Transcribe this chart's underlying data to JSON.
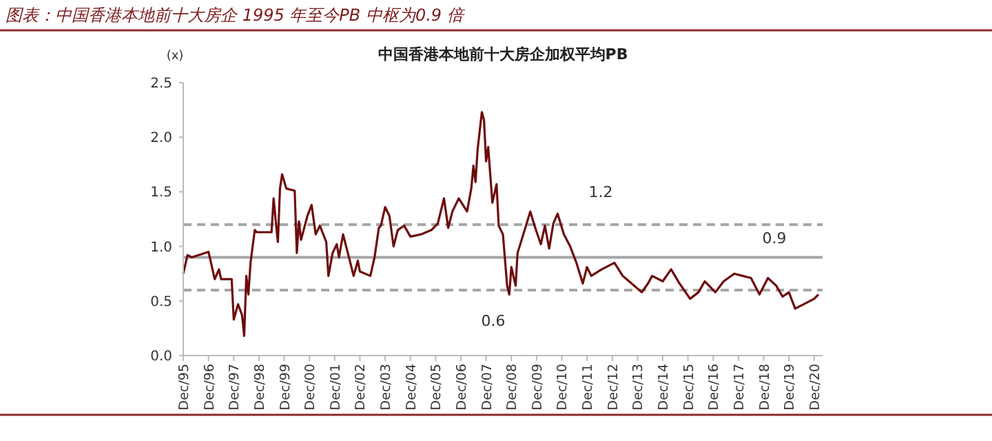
{
  "chart_data": {
    "type": "line",
    "title": "图表：中国香港本地前十大房企 1995 年至今PB 中枢为0.9 倍",
    "subtitle": "中国香港本地前十大房企加权平均PB",
    "ylabel": "(x)",
    "x": [
      "1995-12",
      "1996-02",
      "1996-04",
      "1996-12",
      "1997-03",
      "1997-05",
      "1997-06",
      "1997-11",
      "1997-12",
      "1998-02",
      "1998-04",
      "1998-05",
      "1998-06",
      "1998-07",
      "1998-08",
      "1998-10",
      "1998-11",
      "1999-06",
      "1999-07",
      "1999-08",
      "1999-09",
      "1999-10",
      "1999-11",
      "2000-01",
      "2000-05",
      "2000-06",
      "2000-07",
      "2000-08",
      "2000-11",
      "2001-01",
      "2001-03",
      "2001-05",
      "2001-08",
      "2001-09",
      "2001-11",
      "2002-01",
      "2002-02",
      "2002-04",
      "2002-06",
      "2002-09",
      "2002-11",
      "2002-12",
      "2003-05",
      "2003-07",
      "2003-09",
      "2003-10",
      "2003-12",
      "2004-02",
      "2004-04",
      "2004-06",
      "2004-09",
      "2004-12",
      "2005-05",
      "2005-10",
      "2006-01",
      "2006-04",
      "2006-06",
      "2006-08",
      "2006-11",
      "2007-03",
      "2007-05",
      "2007-06",
      "2007-07",
      "2007-08",
      "2007-10",
      "2007-11",
      "2007-12",
      "2008-01",
      "2008-03",
      "2008-05",
      "2008-06",
      "2008-08",
      "2008-10",
      "2008-11",
      "2008-12",
      "2009-02",
      "2009-03",
      "2009-07",
      "2009-09",
      "2009-11",
      "2010-02",
      "2010-04",
      "2010-06",
      "2010-08",
      "2010-10",
      "2011-01",
      "2011-04",
      "2011-07",
      "2011-10",
      "2011-12",
      "2012-02",
      "2012-07",
      "2013-01",
      "2013-05",
      "2013-08",
      "2014-02",
      "2014-05",
      "2014-07",
      "2014-12",
      "2015-04",
      "2015-08",
      "2016-01",
      "2016-05",
      "2016-08",
      "2017-01",
      "2017-05",
      "2017-10",
      "2018-02",
      "2018-06",
      "2018-10",
      "2019-02",
      "2019-06",
      "2019-09",
      "2019-12",
      "2020-03",
      "2020-07",
      "2020-12",
      "2021-02"
    ],
    "series": [
      {
        "color": "#6e0c0c",
        "values": [
          0.75,
          0.92,
          0.9,
          0.95,
          0.7,
          0.79,
          0.7,
          0.7,
          0.33,
          0.47,
          0.37,
          0.18,
          0.73,
          0.56,
          0.85,
          1.15,
          1.13,
          1.13,
          1.44,
          1.23,
          1.04,
          1.53,
          1.66,
          1.53,
          1.51,
          0.94,
          1.23,
          1.06,
          1.28,
          1.38,
          1.11,
          1.19,
          1.04,
          0.73,
          0.94,
          1.02,
          0.9,
          1.11,
          0.96,
          0.73,
          0.87,
          0.77,
          0.73,
          0.9,
          1.17,
          1.19,
          1.36,
          1.28,
          1.0,
          1.15,
          1.19,
          1.09,
          1.11,
          1.15,
          1.21,
          1.44,
          1.17,
          1.32,
          1.44,
          1.32,
          1.53,
          1.74,
          1.59,
          1.89,
          2.23,
          2.16,
          1.78,
          1.91,
          1.4,
          1.57,
          1.19,
          1.11,
          0.64,
          0.56,
          0.81,
          0.64,
          0.94,
          1.19,
          1.32,
          1.19,
          1.02,
          1.19,
          0.98,
          1.21,
          1.3,
          1.11,
          1.0,
          0.85,
          0.66,
          0.81,
          0.73,
          0.79,
          0.85,
          0.73,
          0.68,
          0.58,
          0.66,
          0.73,
          0.68,
          0.79,
          0.66,
          0.52,
          0.58,
          0.68,
          0.58,
          0.68,
          0.75,
          0.73,
          0.71,
          0.56,
          0.71,
          0.64,
          0.54,
          0.58,
          0.43,
          0.47,
          0.52,
          0.56
        ]
      }
    ],
    "xlim": [
      "1995-12",
      "2021-04"
    ],
    "xticks": [
      {
        "value": "1995-12",
        "label": "Dec/95"
      },
      {
        "value": "1996-12",
        "label": "Dec/96"
      },
      {
        "value": "1997-12",
        "label": "Dec/97"
      },
      {
        "value": "1998-12",
        "label": "Dec/98"
      },
      {
        "value": "1999-12",
        "label": "Dec/99"
      },
      {
        "value": "2000-12",
        "label": "Dec/00"
      },
      {
        "value": "2001-12",
        "label": "Dec/01"
      },
      {
        "value": "2002-12",
        "label": "Dec/02"
      },
      {
        "value": "2003-12",
        "label": "Dec/03"
      },
      {
        "value": "2004-12",
        "label": "Dec/04"
      },
      {
        "value": "2005-12",
        "label": "Dec/05"
      },
      {
        "value": "2006-12",
        "label": "Dec/06"
      },
      {
        "value": "2007-12",
        "label": "Dec/07"
      },
      {
        "value": "2008-12",
        "label": "Dec/08"
      },
      {
        "value": "2009-12",
        "label": "Dec/09"
      },
      {
        "value": "2010-12",
        "label": "Dec/10"
      },
      {
        "value": "2011-12",
        "label": "Dec/11"
      },
      {
        "value": "2012-12",
        "label": "Dec/12"
      },
      {
        "value": "2013-12",
        "label": "Dec/13"
      },
      {
        "value": "2014-12",
        "label": "Dec/14"
      },
      {
        "value": "2015-12",
        "label": "Dec/15"
      },
      {
        "value": "2016-12",
        "label": "Dec/16"
      },
      {
        "value": "2017-12",
        "label": "Dec/17"
      },
      {
        "value": "2018-12",
        "label": "Dec/18"
      },
      {
        "value": "2019-12",
        "label": "Dec/19"
      },
      {
        "value": "2020-12",
        "label": "Dec/20"
      }
    ],
    "ylim": [
      0,
      2.5
    ],
    "yticks": [
      {
        "value": 0,
        "label": "0.0"
      },
      {
        "value": 0.5,
        "label": "0.5"
      },
      {
        "value": 1,
        "label": "1.0"
      },
      {
        "value": 1.5,
        "label": "1.5"
      },
      {
        "value": 2,
        "label": "2.0"
      },
      {
        "value": 2.5,
        "label": "2.5"
      }
    ],
    "ref_lines": [
      {
        "axis": "y",
        "value": 1.2,
        "label": "1.2",
        "color": "#a6a6a6",
        "line_style": "dashed"
      },
      {
        "axis": "y",
        "value": 0.9,
        "label": "0.9",
        "color": "#a6a6a6",
        "line_style": "solid"
      },
      {
        "axis": "y",
        "value": 0.6,
        "label": "0.6",
        "color": "#a6a6a6",
        "line_style": "dashed"
      }
    ],
    "grid": false,
    "marker": "none",
    "line_style": "solid"
  }
}
